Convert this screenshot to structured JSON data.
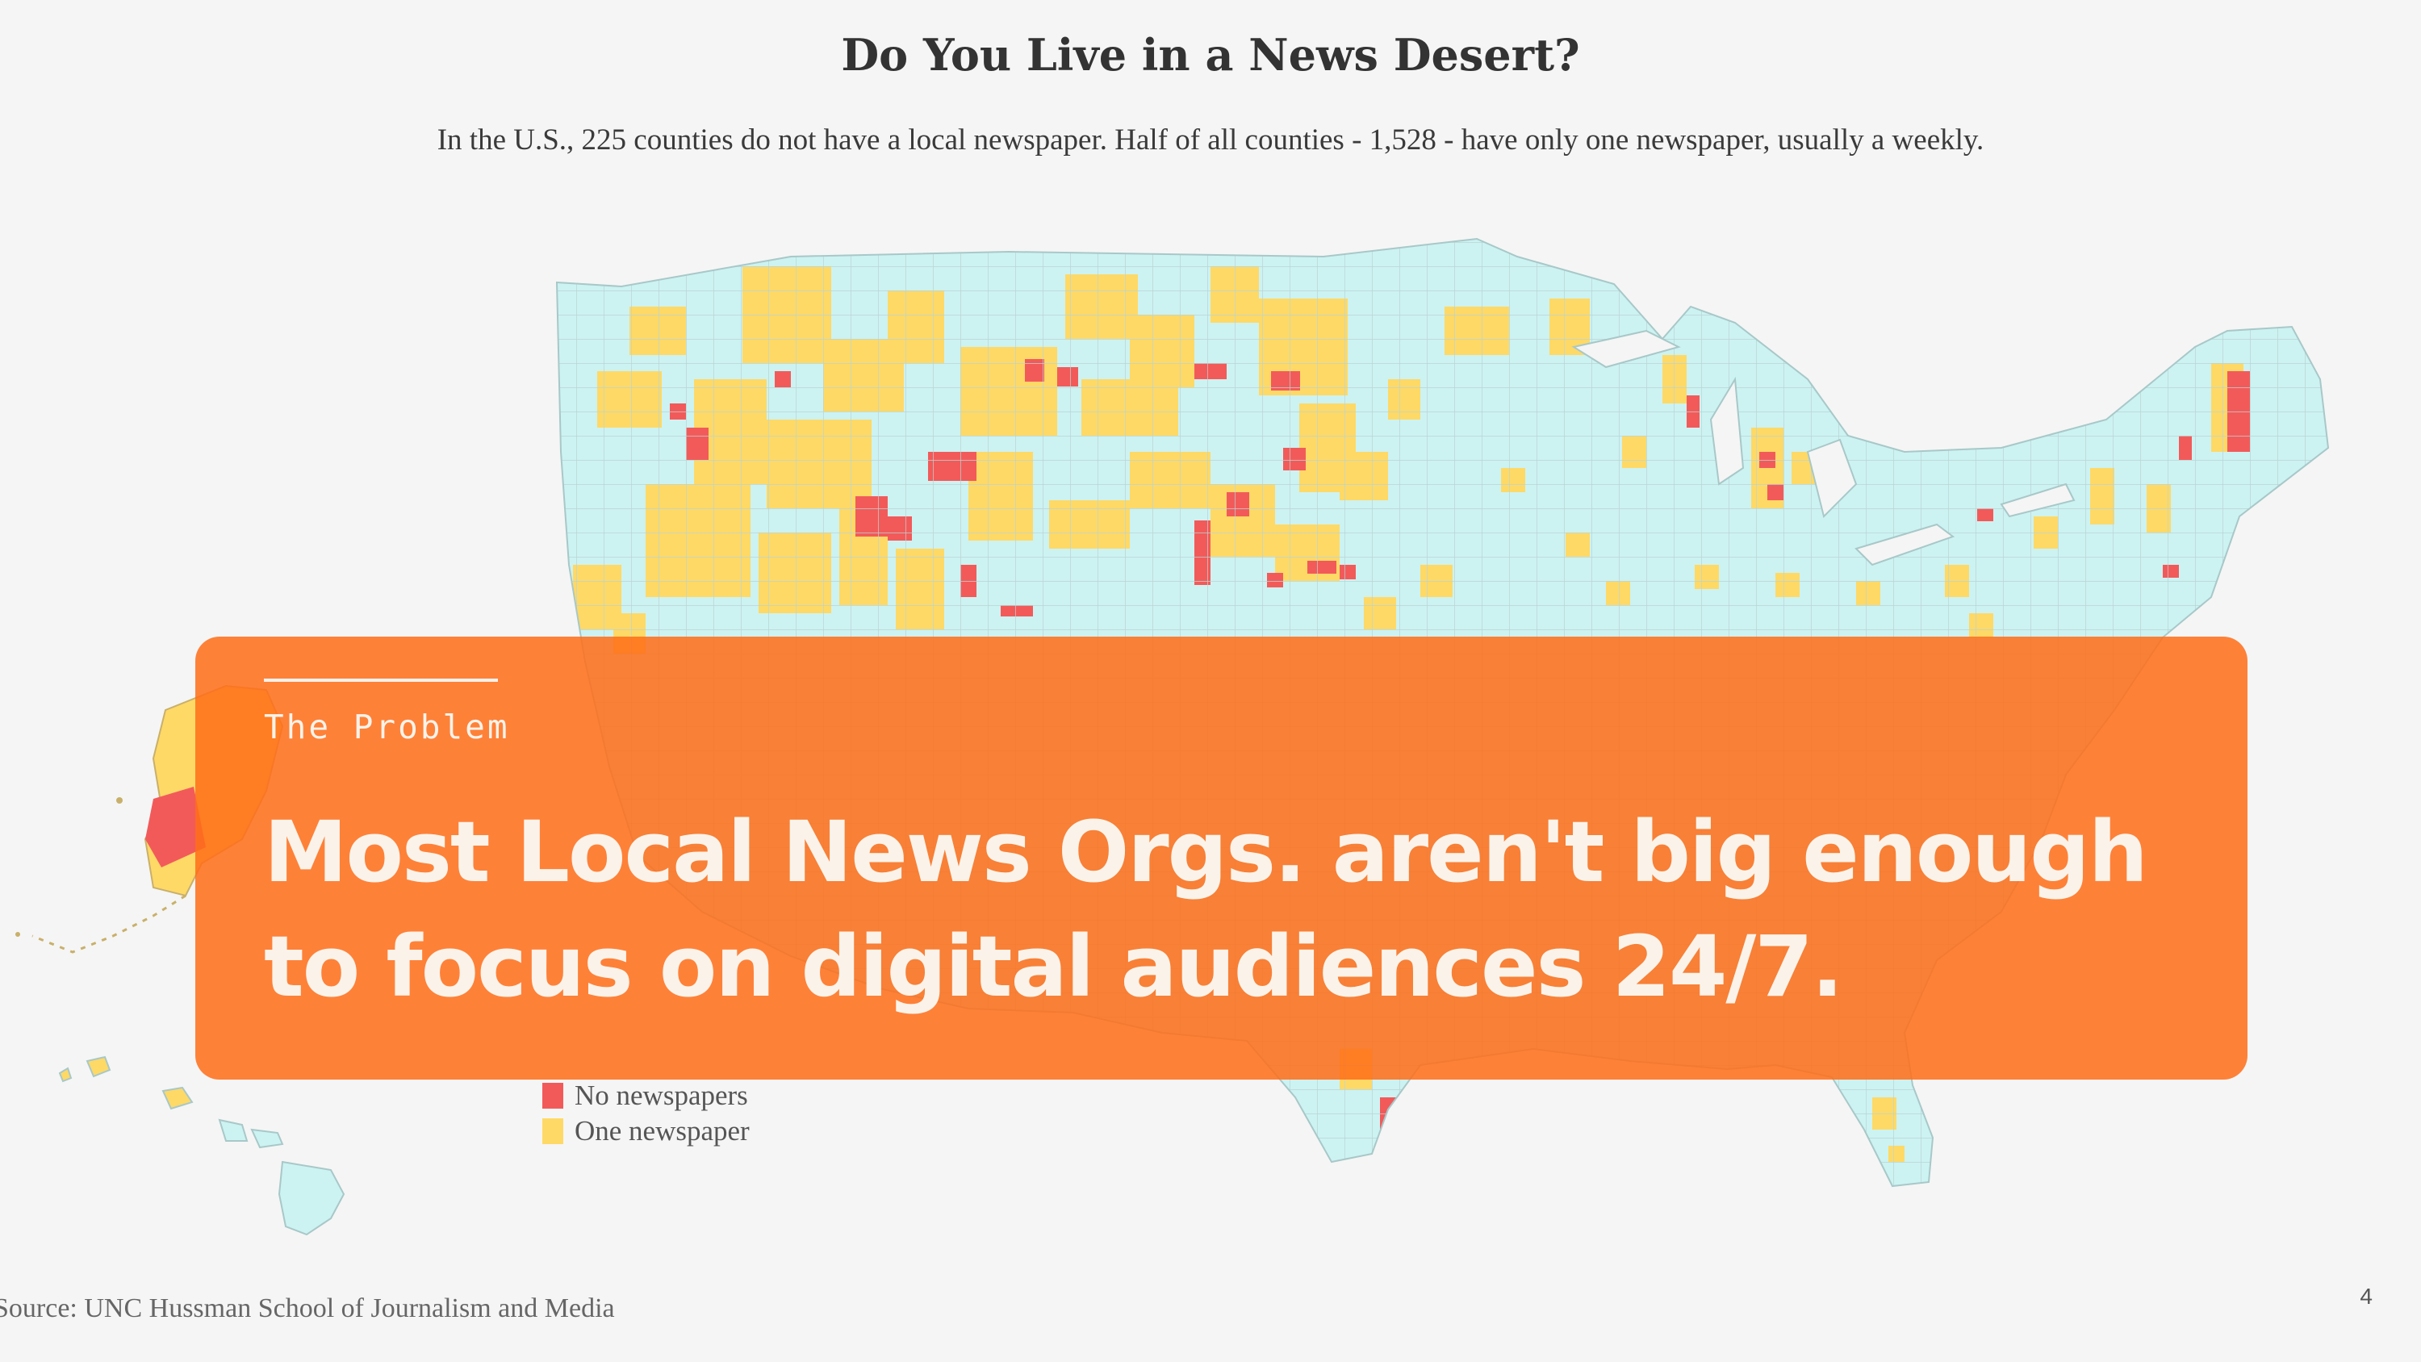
{
  "map": {
    "title": "Do You Live in a News Desert?",
    "subtitle": "In the U.S., 225 counties do not have a local newspaper. Half of all counties - 1,528 - have only one newspaper, usually a weekly.",
    "colors": {
      "no_newspapers": "#f25a5a",
      "one_newspaper": "#ffd966",
      "two_or_more": "#cdf2f2",
      "background": "#f5f5f5"
    },
    "legend": [
      {
        "label": "No newspapers",
        "color": "#f25a5a"
      },
      {
        "label": "One newspaper",
        "color": "#ffd966"
      }
    ],
    "source": "Source: UNC Hussman School of Journalism and Media"
  },
  "slide": {
    "page_number": "4",
    "overlay_color": "#ff6e19",
    "kicker": "The Problem",
    "headline": "Most Local News Orgs. aren't big enough to focus on digital audiences 24/7."
  }
}
